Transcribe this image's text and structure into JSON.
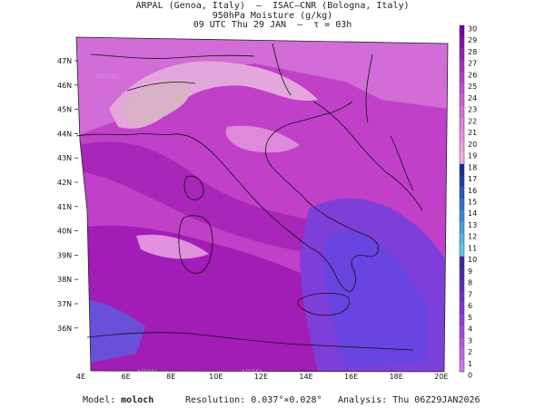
{
  "header": {
    "line1": "ARPAL (Genoa, Italy)  –  ISAC–CNR (Bologna, Italy)",
    "line2": "950hPa Moisture (g/kg)",
    "line3": "09 UTC Thu 29 JAN  –  τ = 03h"
  },
  "map": {
    "lat_labels": [
      "47N",
      "46N",
      "45N",
      "44N",
      "43N",
      "42N",
      "41N",
      "40N",
      "39N",
      "38N",
      "37N",
      "36N"
    ],
    "lon_labels": [
      "4E",
      "6E",
      "8E",
      "10E",
      "12E",
      "14E",
      "16E",
      "18E",
      "20E"
    ],
    "watermark": "ARPAL"
  },
  "colorbar": {
    "levels": [
      "30",
      "29",
      "28",
      "27",
      "26",
      "25",
      "24",
      "23",
      "22",
      "21",
      "20",
      "19",
      "18",
      "17",
      "16",
      "15",
      "14",
      "13",
      "12",
      "11",
      "10",
      "9",
      "8",
      "7",
      "6",
      "5",
      "4",
      "3",
      "2",
      "1",
      "0"
    ],
    "colors": [
      "#7a00a6",
      "#8a0fb0",
      "#9a1fba",
      "#aa2fc2",
      "#ba3fca",
      "#c84fd0",
      "#d25fd6",
      "#dc6fdc",
      "#e27fde",
      "#e88fe0",
      "#ec9fe4",
      "#f0afe6",
      "#1c2a9a",
      "#2040b0",
      "#2858c2",
      "#3070d0",
      "#3a88dc",
      "#44a0e4",
      "#50b4ea",
      "#60c4ee",
      "#3a2a9a",
      "#4a2ab0",
      "#5a2cc4",
      "#6c30d2",
      "#7e36dc",
      "#9040e0",
      "#a04ce2",
      "#b05ae4",
      "#c06ae6",
      "#d07ae8"
    ]
  },
  "footer": {
    "model_label": "Model:",
    "model_value": "moloch",
    "resolution": "Resolution: 0.037°×0.028°",
    "analysis": "Analysis: Thu 06Z29JAN2026"
  }
}
